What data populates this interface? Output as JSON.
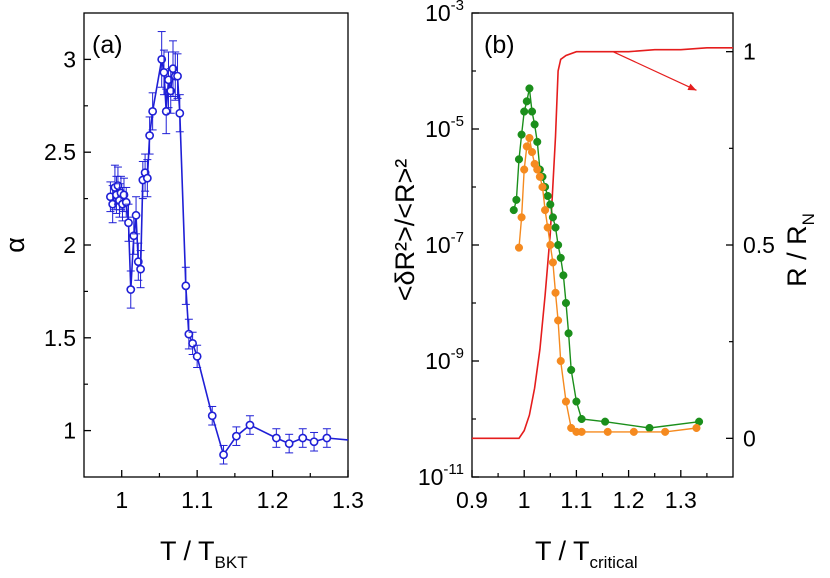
{
  "chart_data": [
    {
      "type": "scatter",
      "panel_label": "(a)",
      "xlabel": "T / T",
      "xlabel_sub": "BKT",
      "ylabel": "α",
      "xlim": [
        0.95,
        1.3
      ],
      "ylim": [
        0.75,
        3.25
      ],
      "xticks": [
        "1",
        "1.1",
        "1.2",
        "1.3"
      ],
      "yticks": [
        "1",
        "1.5",
        "2",
        "2.5",
        "3"
      ],
      "grid": false,
      "series": [
        {
          "color": "#1f1fd6",
          "marker": "open-circle",
          "x": [
            0.985,
            0.988,
            0.991,
            0.993,
            0.995,
            0.997,
            0.999,
            1.001,
            1.003,
            1.006,
            1.009,
            1.012,
            1.016,
            1.019,
            1.022,
            1.025,
            1.028,
            1.031,
            1.034,
            1.037,
            1.041,
            1.053,
            1.056,
            1.059,
            1.062,
            1.065,
            1.068,
            1.071,
            1.074,
            1.077,
            1.085,
            1.089,
            1.094,
            1.1,
            1.12,
            1.135,
            1.152,
            1.17,
            1.205,
            1.222,
            1.24,
            1.255,
            1.272,
            1.3
          ],
          "y": [
            2.26,
            2.22,
            2.31,
            2.27,
            2.32,
            2.24,
            2.28,
            2.22,
            2.27,
            2.23,
            2.12,
            1.76,
            2.05,
            2.16,
            1.91,
            1.87,
            2.35,
            2.39,
            2.36,
            2.59,
            2.72,
            3.0,
            2.93,
            2.72,
            2.89,
            2.83,
            2.95,
            2.91,
            2.91,
            2.71,
            1.78,
            1.52,
            1.47,
            1.4,
            1.08,
            0.87,
            0.97,
            1.03,
            0.96,
            0.93,
            0.96,
            0.94,
            0.96,
            0.95
          ],
          "errors": [
            0.08,
            0.1,
            0.12,
            0.1,
            0.1,
            0.09,
            0.09,
            0.09,
            0.09,
            0.08,
            0.1,
            0.1,
            0.1,
            0.1,
            0.1,
            0.1,
            0.1,
            0.1,
            0.1,
            0.1,
            0.1,
            0.15,
            0.12,
            0.12,
            0.15,
            0.12,
            0.15,
            0.13,
            0.12,
            0.1,
            0.1,
            0.08,
            0.06,
            0.06,
            0.05,
            0.05,
            0.05,
            0.05,
            0.05,
            0.05,
            0.05,
            0.05,
            0.05,
            0.0
          ]
        }
      ]
    },
    {
      "type": "line",
      "panel_label": "(b)",
      "xlabel": "T / T",
      "xlabel_sub": "critical",
      "ylabel_left": "<δR²>/<R>²",
      "ylabel_right": "R / R",
      "ylabel_right_sub": "N",
      "xlim": [
        0.9,
        1.4
      ],
      "ylim_left": [
        1e-11,
        0.001
      ],
      "yscale_left": "log",
      "ylim_right": [
        -0.1,
        1.1
      ],
      "xticks": [
        "0.9",
        "1",
        "1.1",
        "1.2",
        "1.3"
      ],
      "yticks_left": [
        "10-11",
        "10-9",
        "10-7",
        "10-5",
        "10-3"
      ],
      "yticks_right": [
        "0",
        "0.5",
        "1"
      ],
      "grid": false,
      "series": [
        {
          "color": "#e51d1d",
          "axis": "right",
          "marker": "none",
          "x": [
            0.9,
            0.95,
            0.99,
            1.0,
            1.01,
            1.02,
            1.03,
            1.04,
            1.05,
            1.06,
            1.065,
            1.07,
            1.08,
            1.1,
            1.15,
            1.2,
            1.25,
            1.3,
            1.35,
            1.4
          ],
          "y": [
            0.0,
            0.0,
            0.0,
            0.02,
            0.06,
            0.13,
            0.23,
            0.37,
            0.53,
            0.78,
            0.95,
            0.98,
            0.99,
            1.0,
            1.0,
            1.0,
            1.005,
            1.005,
            1.01,
            1.01
          ]
        },
        {
          "color": "#1b8f1b",
          "axis": "left",
          "marker": "filled-circle",
          "x": [
            0.98,
            0.985,
            0.99,
            0.995,
            1.0,
            1.005,
            1.01,
            1.015,
            1.02,
            1.025,
            1.03,
            1.035,
            1.04,
            1.045,
            1.05,
            1.055,
            1.06,
            1.065,
            1.07,
            1.075,
            1.08,
            1.085,
            1.09,
            1.1,
            1.11,
            1.155,
            1.24,
            1.335
          ],
          "y": [
            4e-07,
            6e-07,
            3e-06,
            8e-06,
            2e-05,
            3e-05,
            5e-05,
            2e-05,
            1.2e-05,
            6e-06,
            2e-06,
            1.5e-06,
            1e-06,
            7e-07,
            5e-07,
            3e-07,
            2e-07,
            1e-07,
            6e-08,
            3e-08,
            1e-08,
            3e-09,
            7e-10,
            2e-10,
            1e-10,
            9e-11,
            7e-11,
            9e-11
          ]
        },
        {
          "color": "#f58a1f",
          "axis": "left",
          "marker": "filled-circle",
          "x": [
            0.99,
            0.995,
            1.0,
            1.005,
            1.01,
            1.015,
            1.02,
            1.025,
            1.03,
            1.035,
            1.04,
            1.045,
            1.05,
            1.055,
            1.06,
            1.065,
            1.07,
            1.08,
            1.09,
            1.1,
            1.11,
            1.16,
            1.21,
            1.27,
            1.33
          ],
          "y": [
            9e-08,
            3e-07,
            2e-06,
            5e-06,
            7e-06,
            4e-06,
            2.5e-06,
            2e-06,
            1.5e-06,
            1e-06,
            4e-07,
            2e-07,
            1e-07,
            5e-08,
            1.5e-08,
            5e-09,
            1e-09,
            2e-10,
            7e-11,
            6e-11,
            6e-11,
            6e-11,
            6e-11,
            6e-11,
            7e-11
          ]
        }
      ]
    }
  ]
}
